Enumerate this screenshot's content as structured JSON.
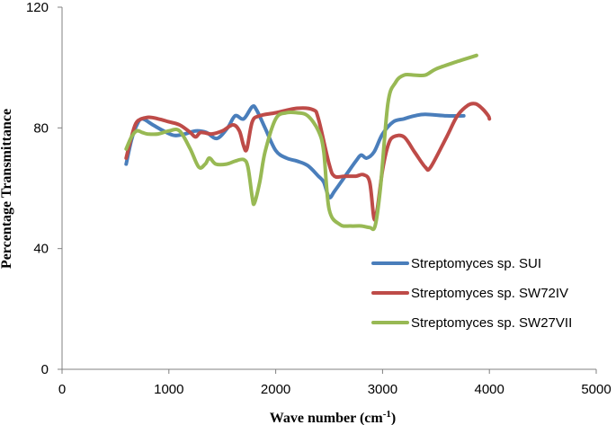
{
  "chart_data": {
    "type": "line",
    "xlabel": "Wave number (cm",
    "xlabel_sup": "-1",
    "xlabel_end": ")",
    "ylabel": "Percentage Transmittance",
    "xlim": [
      0,
      5000
    ],
    "ylim": [
      0,
      120
    ],
    "x_ticks": [
      "0",
      "1000",
      "2000",
      "3000",
      "4000",
      "5000"
    ],
    "y_ticks": [
      "0",
      "40",
      "80",
      "120"
    ],
    "grid": false,
    "legend_position": "bottom-right",
    "series": [
      {
        "name": "Streptomyces sp. SUI",
        "color": "#4a7ebb",
        "points": [
          [
            600,
            68
          ],
          [
            650,
            76
          ],
          [
            700,
            81
          ],
          [
            750,
            83
          ],
          [
            850,
            81
          ],
          [
            950,
            79
          ],
          [
            1050,
            77.5
          ],
          [
            1150,
            78
          ],
          [
            1250,
            79
          ],
          [
            1350,
            78.5
          ],
          [
            1450,
            76.5
          ],
          [
            1550,
            80
          ],
          [
            1620,
            84
          ],
          [
            1700,
            83
          ],
          [
            1780,
            87
          ],
          [
            1820,
            86
          ],
          [
            1900,
            80
          ],
          [
            2000,
            72.5
          ],
          [
            2100,
            70
          ],
          [
            2200,
            69
          ],
          [
            2300,
            67.5
          ],
          [
            2400,
            64
          ],
          [
            2450,
            62
          ],
          [
            2500,
            57
          ],
          [
            2550,
            59
          ],
          [
            2650,
            64
          ],
          [
            2750,
            69
          ],
          [
            2800,
            71
          ],
          [
            2850,
            70
          ],
          [
            2920,
            72
          ],
          [
            3000,
            78
          ],
          [
            3100,
            82
          ],
          [
            3200,
            83
          ],
          [
            3300,
            84
          ],
          [
            3400,
            84.5
          ],
          [
            3600,
            84
          ],
          [
            3760,
            84
          ]
        ]
      },
      {
        "name": "Streptomyces sp. SW72IV",
        "color": "#be4b48",
        "points": [
          [
            600,
            70
          ],
          [
            650,
            77
          ],
          [
            700,
            82
          ],
          [
            800,
            83.5
          ],
          [
            900,
            83
          ],
          [
            1000,
            82
          ],
          [
            1100,
            81
          ],
          [
            1200,
            78.5
          ],
          [
            1250,
            77
          ],
          [
            1300,
            78.5
          ],
          [
            1400,
            78
          ],
          [
            1500,
            79
          ],
          [
            1600,
            81
          ],
          [
            1660,
            79
          ],
          [
            1700,
            74
          ],
          [
            1730,
            73
          ],
          [
            1780,
            82
          ],
          [
            1850,
            84
          ],
          [
            2000,
            85
          ],
          [
            2200,
            86.5
          ],
          [
            2350,
            86
          ],
          [
            2400,
            83
          ],
          [
            2500,
            68
          ],
          [
            2550,
            64
          ],
          [
            2650,
            64
          ],
          [
            2750,
            64
          ],
          [
            2820,
            64.5
          ],
          [
            2880,
            62
          ],
          [
            2920,
            50
          ],
          [
            2950,
            53
          ],
          [
            3000,
            66
          ],
          [
            3050,
            74
          ],
          [
            3100,
            77
          ],
          [
            3200,
            77
          ],
          [
            3300,
            72
          ],
          [
            3400,
            67
          ],
          [
            3450,
            67
          ],
          [
            3600,
            77
          ],
          [
            3700,
            84
          ],
          [
            3800,
            87.5
          ],
          [
            3870,
            88
          ],
          [
            3930,
            86.5
          ],
          [
            3990,
            84
          ],
          [
            4000,
            83
          ]
        ]
      },
      {
        "name": "Streptomyces sp. SW27VII",
        "color": "#98b954",
        "points": [
          [
            600,
            73
          ],
          [
            650,
            77
          ],
          [
            700,
            79
          ],
          [
            750,
            78.5
          ],
          [
            800,
            78
          ],
          [
            900,
            78
          ],
          [
            1000,
            79
          ],
          [
            1100,
            79
          ],
          [
            1200,
            73
          ],
          [
            1280,
            67
          ],
          [
            1340,
            68
          ],
          [
            1380,
            70
          ],
          [
            1440,
            68
          ],
          [
            1540,
            68
          ],
          [
            1620,
            69
          ],
          [
            1700,
            69.5
          ],
          [
            1740,
            67
          ],
          [
            1780,
            57
          ],
          [
            1800,
            55
          ],
          [
            1850,
            62
          ],
          [
            1900,
            72
          ],
          [
            2000,
            83
          ],
          [
            2100,
            85
          ],
          [
            2200,
            85
          ],
          [
            2300,
            84
          ],
          [
            2400,
            79
          ],
          [
            2450,
            72
          ],
          [
            2500,
            53
          ],
          [
            2600,
            48
          ],
          [
            2700,
            47.5
          ],
          [
            2800,
            47.5
          ],
          [
            2880,
            47
          ],
          [
            2930,
            47.5
          ],
          [
            2980,
            60
          ],
          [
            3050,
            88
          ],
          [
            3120,
            95
          ],
          [
            3200,
            97.5
          ],
          [
            3300,
            97.5
          ],
          [
            3400,
            97.5
          ],
          [
            3500,
            99.5
          ],
          [
            3700,
            102
          ],
          [
            3880,
            104
          ]
        ]
      }
    ]
  }
}
